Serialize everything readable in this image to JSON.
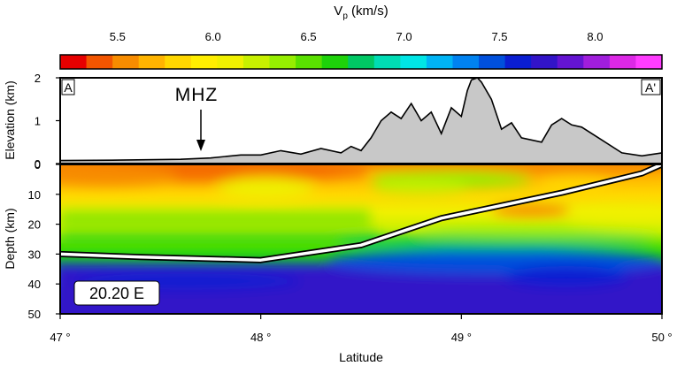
{
  "chart_data": {
    "type": "heatmap",
    "colorbar": {
      "title": "V",
      "title_sub": "p",
      "title_unit": " (km/s)",
      "ticks": [
        "5.5",
        "6.0",
        "6.5",
        "7.0",
        "7.5",
        "8.0"
      ],
      "tick_values": [
        5.5,
        6.0,
        6.5,
        7.0,
        7.5,
        8.0
      ],
      "range": [
        5.2,
        8.35
      ],
      "colors": [
        "#e60000",
        "#f25500",
        "#f78c00",
        "#ffb400",
        "#ffd700",
        "#ffee00",
        "#f0f000",
        "#c8f000",
        "#96ee00",
        "#5ae000",
        "#1ed20a",
        "#00c864",
        "#00dcb4",
        "#00e6e6",
        "#00b4f5",
        "#0082f0",
        "#0050dc",
        "#0a1ed2",
        "#3214c8",
        "#6414d2",
        "#a01edc",
        "#dc28e6",
        "#ff3cff"
      ]
    },
    "elevation_panel": {
      "ylabel": "Elevation (km)",
      "yticks": [
        "2",
        "1",
        "0"
      ],
      "ylim": [
        0,
        2
      ],
      "label_left": "A",
      "label_right": "A'",
      "annotation": "MHZ",
      "annotation_lat": 47.7,
      "profile": {
        "lat": [
          47.0,
          47.3,
          47.6,
          47.75,
          47.9,
          48.0,
          48.1,
          48.2,
          48.3,
          48.4,
          48.45,
          48.5,
          48.55,
          48.6,
          48.65,
          48.7,
          48.75,
          48.8,
          48.85,
          48.9,
          48.95,
          49.0,
          49.03,
          49.05,
          49.08,
          49.1,
          49.15,
          49.2,
          49.25,
          49.3,
          49.4,
          49.45,
          49.5,
          49.55,
          49.6,
          49.7,
          49.8,
          49.9,
          50.0
        ],
        "elev_km": [
          0.07,
          0.08,
          0.1,
          0.13,
          0.2,
          0.2,
          0.3,
          0.22,
          0.35,
          0.25,
          0.4,
          0.3,
          0.6,
          1.0,
          1.2,
          1.05,
          1.4,
          1.0,
          1.2,
          0.7,
          1.3,
          1.1,
          1.7,
          1.95,
          2.0,
          1.9,
          1.5,
          0.8,
          0.95,
          0.6,
          0.5,
          0.9,
          1.05,
          0.9,
          0.85,
          0.55,
          0.25,
          0.18,
          0.25
        ]
      }
    },
    "depth_panel": {
      "ylabel": "Depth (km)",
      "yticks": [
        "0",
        "10",
        "20",
        "30",
        "40",
        "50"
      ],
      "ylim": [
        0,
        50
      ],
      "xlabel": "Latitude",
      "xticks": [
        "47 °",
        "48 °",
        "49 °",
        "50 °"
      ],
      "xlim": [
        47,
        50
      ],
      "inset_label": "20.20 E",
      "moho": {
        "lat": [
          47.0,
          47.4,
          48.0,
          48.5,
          48.9,
          49.5,
          49.9,
          50.0
        ],
        "depth_km": [
          30.0,
          31.0,
          32.0,
          27.0,
          18.0,
          9.5,
          3.0,
          0.0
        ]
      }
    }
  }
}
